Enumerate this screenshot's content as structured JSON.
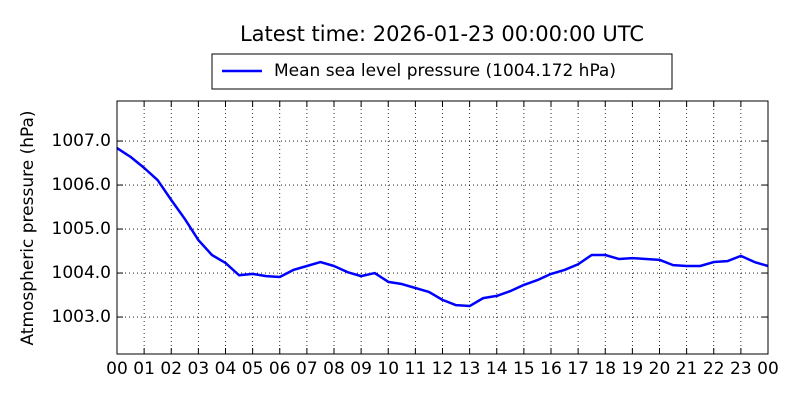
{
  "chart_data": {
    "type": "line",
    "title": "Latest time: 2026-01-23 00:00:00 UTC",
    "y_label": "Atmospheric pressure (hPa)",
    "x": [
      0,
      0.5,
      1,
      1.5,
      2,
      2.5,
      3,
      3.5,
      4,
      4.5,
      5,
      5.5,
      6,
      6.5,
      7,
      7.5,
      8,
      8.5,
      9,
      9.5,
      10,
      10.5,
      11,
      11.5,
      12,
      12.5,
      13,
      13.5,
      14,
      14.5,
      15,
      15.5,
      16,
      16.5,
      17,
      17.5,
      18,
      18.5,
      19,
      19.5,
      20,
      20.5,
      21,
      21.5,
      22,
      22.5,
      23,
      23.5,
      24
    ],
    "series": [
      {
        "name": "Mean sea level pressure (1004.172 hPa)",
        "color": "#0000ff",
        "values": [
          1006.84,
          1006.64,
          1006.39,
          1006.11,
          1005.66,
          1005.23,
          1004.75,
          1004.41,
          1004.23,
          1003.95,
          1003.98,
          1003.93,
          1003.91,
          1004.07,
          1004.16,
          1004.25,
          1004.16,
          1004.02,
          1003.93,
          1004.0,
          1003.8,
          1003.75,
          1003.66,
          1003.57,
          1003.39,
          1003.27,
          1003.25,
          1003.43,
          1003.48,
          1003.59,
          1003.73,
          1003.84,
          1003.98,
          1004.07,
          1004.2,
          1004.41,
          1004.41,
          1004.32,
          1004.34,
          1004.32,
          1004.3,
          1004.18,
          1004.16,
          1004.16,
          1004.25,
          1004.27,
          1004.39,
          1004.25,
          1004.16
        ]
      }
    ],
    "xlim": [
      0,
      24
    ],
    "xticks": [
      {
        "value": 0,
        "label": "00"
      },
      {
        "value": 1,
        "label": "01"
      },
      {
        "value": 2,
        "label": "02"
      },
      {
        "value": 3,
        "label": "03"
      },
      {
        "value": 4,
        "label": "04"
      },
      {
        "value": 5,
        "label": "05"
      },
      {
        "value": 6,
        "label": "06"
      },
      {
        "value": 7,
        "label": "07"
      },
      {
        "value": 8,
        "label": "08"
      },
      {
        "value": 9,
        "label": "09"
      },
      {
        "value": 10,
        "label": "10"
      },
      {
        "value": 11,
        "label": "11"
      },
      {
        "value": 12,
        "label": "12"
      },
      {
        "value": 13,
        "label": "13"
      },
      {
        "value": 14,
        "label": "14"
      },
      {
        "value": 15,
        "label": "15"
      },
      {
        "value": 16,
        "label": "16"
      },
      {
        "value": 17,
        "label": "17"
      },
      {
        "value": 18,
        "label": "18"
      },
      {
        "value": 19,
        "label": "19"
      },
      {
        "value": 20,
        "label": "20"
      },
      {
        "value": 21,
        "label": "21"
      },
      {
        "value": 22,
        "label": "22"
      },
      {
        "value": 23,
        "label": "23"
      },
      {
        "value": 24,
        "label": "00"
      }
    ],
    "ylim": [
      1002.16,
      1007.91
    ],
    "yticks": [
      {
        "value": 1003,
        "label": "1003.0"
      },
      {
        "value": 1004,
        "label": "1004.0"
      },
      {
        "value": 1005,
        "label": "1005.0"
      },
      {
        "value": 1006,
        "label": "1006.0"
      },
      {
        "value": 1007,
        "label": "1007.0"
      }
    ],
    "grid": true
  }
}
